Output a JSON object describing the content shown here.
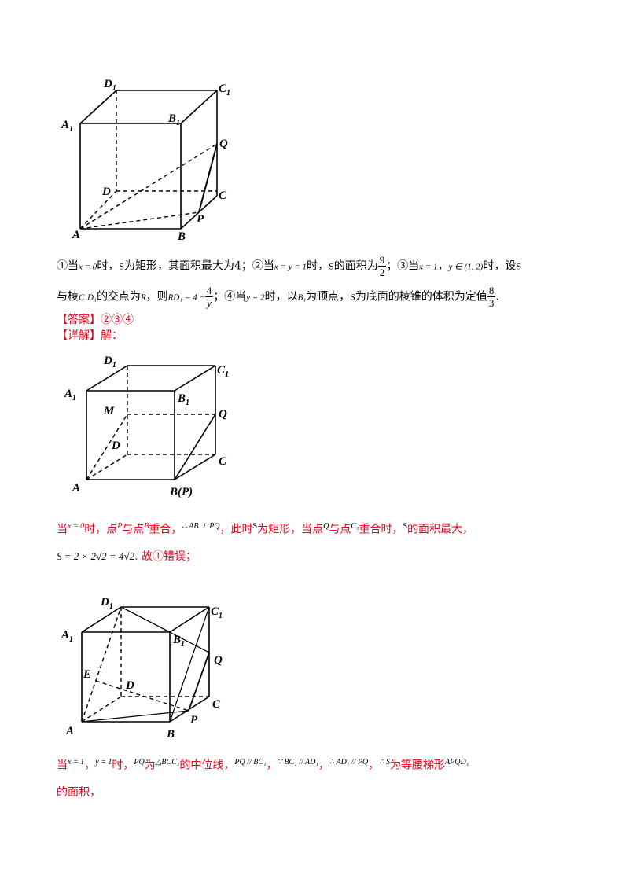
{
  "figure1": {
    "labels": {
      "D1": "D",
      "C1": "C",
      "A1": "A",
      "B1": "B",
      "Q": "Q",
      "D": "D",
      "C": "C",
      "P": "P",
      "A": "A",
      "B": "B",
      "sub1": "1"
    }
  },
  "statement": {
    "line1": {
      "p1": "①当",
      "m1": "x = 0",
      "p2": "时，",
      "m2": "S",
      "p3": "为矩形，其面积最大为4；②当",
      "m3": "x = y = 1",
      "p4": "时，",
      "m4": "S",
      "p5": "的面积为",
      "frac_num": "9",
      "frac_den": "2",
      "p6": "；③当",
      "m5": "x = 1",
      "p7": "，",
      "m6": "y ∈ (1, 2)",
      "p8": "时，设",
      "m7": "S"
    },
    "line2": {
      "p1": "与棱",
      "m1": "C₁D₁",
      "p2": "的交点为",
      "m2": "R",
      "p3": "，则",
      "m3": "RD₁ = 4 −",
      "frac_num": "4",
      "frac_den": "y",
      "p4": "；④当",
      "m4": "y = 2",
      "p5": "时，以",
      "m5": "B₁",
      "p6": "为顶点，",
      "m6": "S",
      "p7": "为底面的棱锥的体积为定值",
      "frac_num2": "8",
      "frac_den2": "3",
      "p8": "."
    }
  },
  "answer": "【答案】②③④",
  "detail": "【详解】解：",
  "figure2": {
    "labels": {
      "D1": "D",
      "C1": "C",
      "A1": "A",
      "B1": "B",
      "M": "M",
      "Q": "Q",
      "D": "D",
      "C": "C",
      "A": "A",
      "BP": "B(P)",
      "sub1": "1"
    }
  },
  "explain1": {
    "line1": {
      "p1": "当",
      "m1": "x = 0",
      "p2": "时，点",
      "m2": "P",
      "p3": "与点",
      "m3": "B",
      "p4": "重合，",
      "m4": "∴ AB ⊥ PQ",
      "p5": "，此时",
      "m5": "S",
      "p6": "为矩形，当点",
      "m6": "Q",
      "p7": "与点",
      "m7": "C₁",
      "p8": "重合时，",
      "m8": "S",
      "p9": "的面积最大，"
    },
    "line2": {
      "m1": "S = 2 × 2√2 = 4√2",
      "p1": ". 故①错误；"
    }
  },
  "figure3": {
    "labels": {
      "D1": "D",
      "C1": "C",
      "A1": "A",
      "B1": "B",
      "E": "E",
      "Q": "Q",
      "D": "D",
      "C": "C",
      "P": "P",
      "A": "A",
      "B": "B",
      "sub1": "1"
    }
  },
  "explain2": {
    "line1": {
      "p1": "当",
      "m1": "x = 1",
      "p2": "，",
      "m2": "y = 1",
      "p3": "时，",
      "m3": "PQ",
      "p4": "为",
      "m4": "△BCC₁",
      "p5": "的中位线，",
      "m5": "PQ // BC₁",
      "p6": "，",
      "m6": "∵ BC₁ // AD₁",
      "p7": "，",
      "m7": "∴ AD₁ // PQ",
      "p8": "，",
      "m8": "∴ S",
      "p9": "为等腰梯形",
      "m9": "APQD₁"
    },
    "line2": {
      "p1": "的面积，"
    }
  }
}
